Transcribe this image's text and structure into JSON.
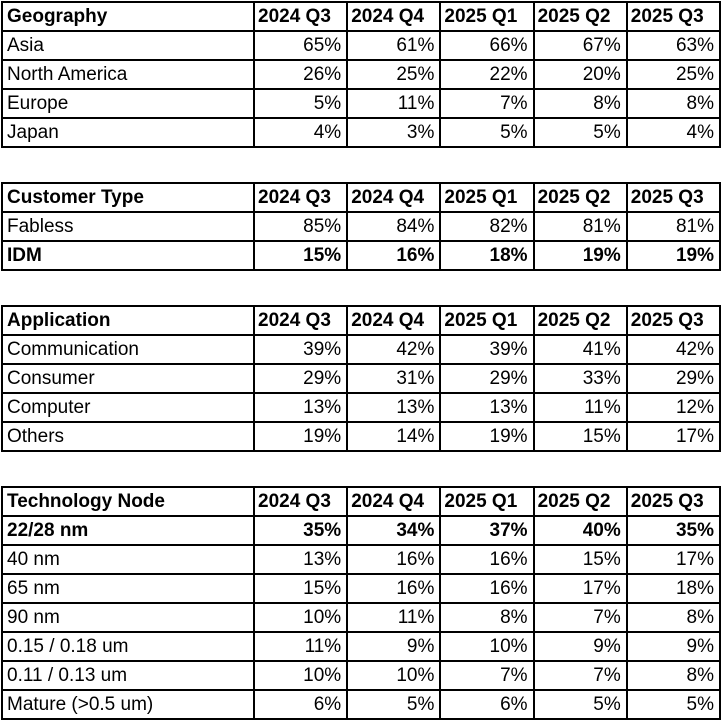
{
  "chart_data": [
    {
      "type": "table",
      "title": "Geography",
      "columns": [
        "2024 Q3",
        "2024 Q4",
        "2025 Q1",
        "2025 Q2",
        "2025 Q3"
      ],
      "rows": [
        {
          "label": "Asia",
          "values": [
            "65%",
            "61%",
            "66%",
            "67%",
            "63%"
          ],
          "bold": false
        },
        {
          "label": "North America",
          "values": [
            "26%",
            "25%",
            "22%",
            "20%",
            "25%"
          ],
          "bold": false
        },
        {
          "label": "Europe",
          "values": [
            "5%",
            "11%",
            "7%",
            "8%",
            "8%"
          ],
          "bold": false
        },
        {
          "label": "Japan",
          "values": [
            "4%",
            "3%",
            "5%",
            "5%",
            "4%"
          ],
          "bold": false
        }
      ]
    },
    {
      "type": "table",
      "title": "Customer Type",
      "columns": [
        "2024 Q3",
        "2024 Q4",
        "2025 Q1",
        "2025 Q2",
        "2025 Q3"
      ],
      "rows": [
        {
          "label": "Fabless",
          "values": [
            "85%",
            "84%",
            "82%",
            "81%",
            "81%"
          ],
          "bold": false
        },
        {
          "label": "IDM",
          "values": [
            "15%",
            "16%",
            "18%",
            "19%",
            "19%"
          ],
          "bold": true
        }
      ]
    },
    {
      "type": "table",
      "title": "Application",
      "columns": [
        "2024 Q3",
        "2024 Q4",
        "2025 Q1",
        "2025 Q2",
        "2025 Q3"
      ],
      "rows": [
        {
          "label": "Communication",
          "values": [
            "39%",
            "42%",
            "39%",
            "41%",
            "42%"
          ],
          "bold": false
        },
        {
          "label": "Consumer",
          "values": [
            "29%",
            "31%",
            "29%",
            "33%",
            "29%"
          ],
          "bold": false
        },
        {
          "label": "Computer",
          "values": [
            "13%",
            "13%",
            "13%",
            "11%",
            "12%"
          ],
          "bold": false
        },
        {
          "label": "Others",
          "values": [
            "19%",
            "14%",
            "19%",
            "15%",
            "17%"
          ],
          "bold": false
        }
      ]
    },
    {
      "type": "table",
      "title": "Technology Node",
      "columns": [
        "2024 Q3",
        "2024 Q4",
        "2025 Q1",
        "2025 Q2",
        "2025 Q3"
      ],
      "rows": [
        {
          "label": "22/28 nm",
          "values": [
            "35%",
            "34%",
            "37%",
            "40%",
            "35%"
          ],
          "bold": true
        },
        {
          "label": "40 nm",
          "values": [
            "13%",
            "16%",
            "16%",
            "15%",
            "17%"
          ],
          "bold": false
        },
        {
          "label": "65 nm",
          "values": [
            "15%",
            "16%",
            "16%",
            "17%",
            "18%"
          ],
          "bold": false
        },
        {
          "label": "90 nm",
          "values": [
            "10%",
            "11%",
            "8%",
            "7%",
            "8%"
          ],
          "bold": false
        },
        {
          "label": "0.15 / 0.18 um",
          "values": [
            "11%",
            "9%",
            "10%",
            "9%",
            "9%"
          ],
          "bold": false
        },
        {
          "label": "0.11 / 0.13 um",
          "values": [
            "10%",
            "10%",
            "7%",
            "7%",
            "8%"
          ],
          "bold": false
        },
        {
          "label": "Mature (>0.5 um)",
          "values": [
            "6%",
            "5%",
            "6%",
            "5%",
            "5%"
          ],
          "bold": false
        }
      ]
    }
  ]
}
